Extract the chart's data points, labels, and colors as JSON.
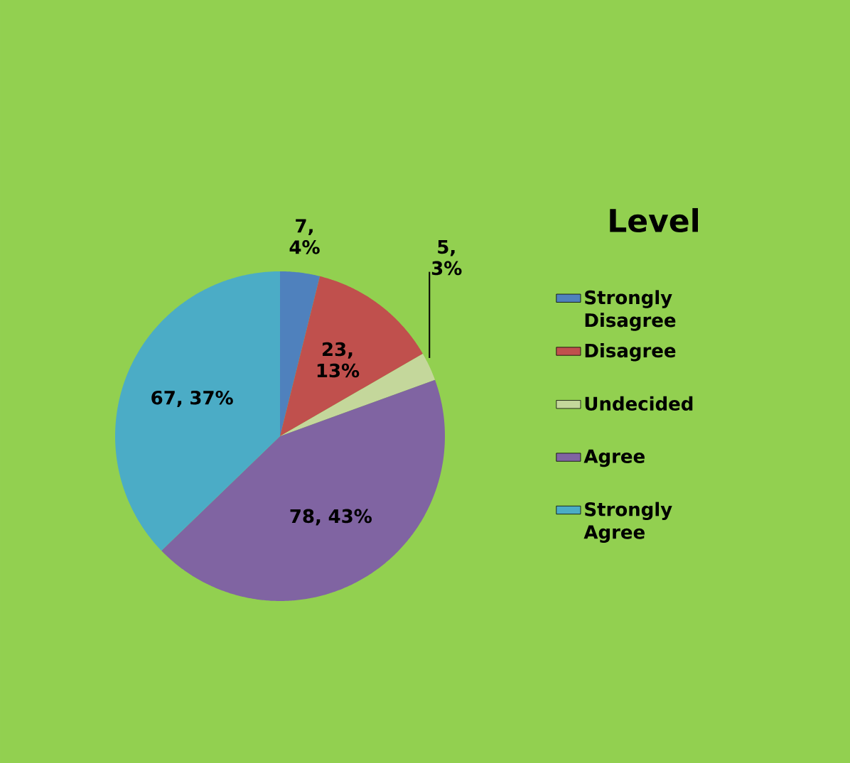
{
  "chart_data": {
    "type": "pie",
    "categories": [
      "Strongly Disagree",
      "Disagree",
      "Undecided",
      "Agree",
      "Strongly Agree"
    ],
    "values": [
      7,
      23,
      5,
      78,
      67
    ],
    "colors": [
      "#4f81bd",
      "#c0504d",
      "#c4d79b",
      "#8064a2",
      "#4bacc6"
    ],
    "value_labels": [
      "7, 4%",
      "23, 13%",
      "5, 3%",
      "78, 43%",
      "67, 37%"
    ],
    "legend_title": "Level",
    "legend": "right"
  }
}
